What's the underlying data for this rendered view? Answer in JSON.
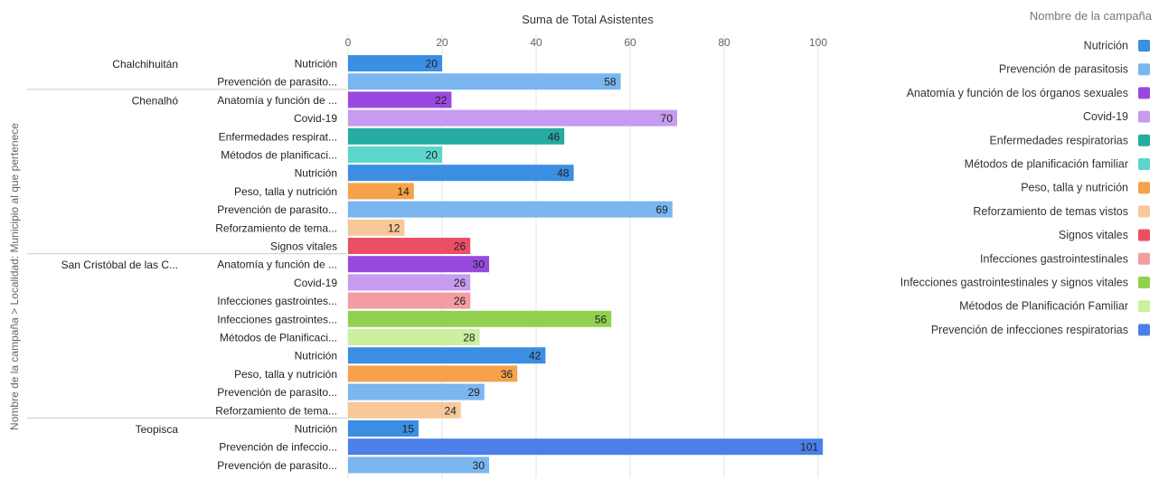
{
  "chart_data": {
    "type": "bar",
    "orientation": "horizontal",
    "title": "Suma de Total Asistentes",
    "ylabel": "Nombre de la campaña  >  Localidad: Municipio al que pertenece",
    "xlim": [
      0,
      101
    ],
    "xticks": [
      0,
      20,
      40,
      60,
      80,
      100
    ],
    "grid": true,
    "legend_position": "right",
    "legend_title": "Nombre de la campaña",
    "legend": [
      {
        "name": "Nutrición",
        "color": "#3a8fe3"
      },
      {
        "name": "Prevención de parasitosis",
        "color": "#7ab6ef"
      },
      {
        "name": "Anatomía y función de los órganos sexuales",
        "color": "#9949e0"
      },
      {
        "name": "Covid-19",
        "color": "#c79bf0"
      },
      {
        "name": "Enfermedades respiratorias",
        "color": "#26aba2"
      },
      {
        "name": "Métodos de planificación familiar",
        "color": "#5cd6cb"
      },
      {
        "name": "Peso, talla y nutrición",
        "color": "#f5a24b"
      },
      {
        "name": "Reforzamiento de temas vistos",
        "color": "#f8c89a"
      },
      {
        "name": "Signos vitales",
        "color": "#ec4f64"
      },
      {
        "name": "Infecciones gastrointestinales",
        "color": "#f39ca2"
      },
      {
        "name": "Infecciones gastrointestinales y signos vitales",
        "color": "#92d14f"
      },
      {
        "name": "Métodos de Planificación Familiar",
        "color": "#cdefa0"
      },
      {
        "name": "Prevención de infecciones respiratorias",
        "color": "#4d7fe8"
      }
    ],
    "groups": [
      {
        "name": "Chalchihuitán",
        "bars": [
          {
            "label": "Nutrición",
            "value": 20,
            "color": "#3a8fe3"
          },
          {
            "label": "Prevención de parasito...",
            "value": 58,
            "color": "#7ab6ef"
          }
        ]
      },
      {
        "name": "Chenalhó",
        "bars": [
          {
            "label": "Anatomía y función de ...",
            "value": 22,
            "color": "#9949e0"
          },
          {
            "label": "Covid-19",
            "value": 70,
            "color": "#c79bf0"
          },
          {
            "label": "Enfermedades respirat...",
            "value": 46,
            "color": "#26aba2"
          },
          {
            "label": "Métodos de planificaci...",
            "value": 20,
            "color": "#5cd6cb"
          },
          {
            "label": "Nutrición",
            "value": 48,
            "color": "#3a8fe3"
          },
          {
            "label": "Peso, talla y nutrición",
            "value": 14,
            "color": "#f5a24b"
          },
          {
            "label": "Prevención de parasito...",
            "value": 69,
            "color": "#7ab6ef"
          },
          {
            "label": "Reforzamiento de tema...",
            "value": 12,
            "color": "#f8c89a"
          },
          {
            "label": "Signos vitales",
            "value": 26,
            "color": "#ec4f64"
          }
        ]
      },
      {
        "name": "San Cristóbal de las C...",
        "bars": [
          {
            "label": "Anatomía y función de ...",
            "value": 30,
            "color": "#9949e0"
          },
          {
            "label": "Covid-19",
            "value": 26,
            "color": "#c79bf0"
          },
          {
            "label": "Infecciones gastrointes...",
            "value": 26,
            "color": "#f39ca2"
          },
          {
            "label": "Infecciones gastrointes...",
            "value": 56,
            "color": "#92d14f"
          },
          {
            "label": "Métodos de Planificaci...",
            "value": 28,
            "color": "#cdefa0"
          },
          {
            "label": "Nutrición",
            "value": 42,
            "color": "#3a8fe3"
          },
          {
            "label": "Peso, talla y nutrición",
            "value": 36,
            "color": "#f5a24b"
          },
          {
            "label": "Prevención de parasito...",
            "value": 29,
            "color": "#7ab6ef"
          },
          {
            "label": "Reforzamiento de tema...",
            "value": 24,
            "color": "#f8c89a"
          }
        ]
      },
      {
        "name": "Teopisca",
        "bars": [
          {
            "label": "Nutrición",
            "value": 15,
            "color": "#3a8fe3"
          },
          {
            "label": "Prevención de infeccio...",
            "value": 101,
            "color": "#4d7fe8"
          },
          {
            "label": "Prevención de parasito...",
            "value": 30,
            "color": "#7ab6ef"
          }
        ]
      }
    ]
  }
}
